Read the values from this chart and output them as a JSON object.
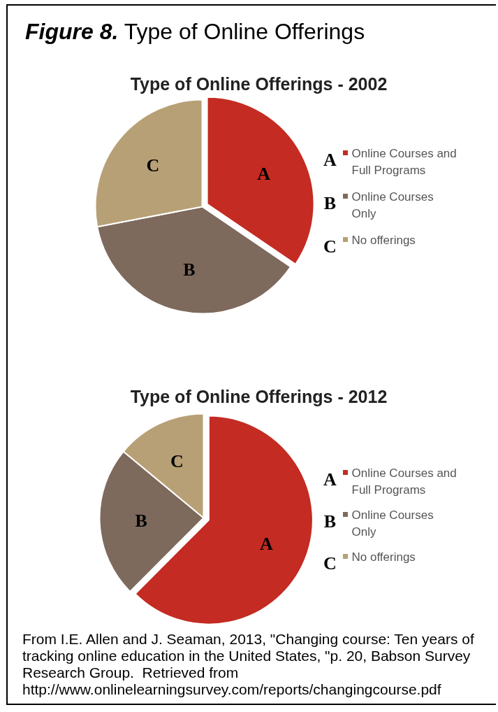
{
  "chart_data": [
    {
      "type": "pie",
      "title": "Type of Online Offerings - 2002",
      "categories": [
        "Online Courses and Full Programs",
        "Online Courses Only",
        "No offerings"
      ],
      "values": [
        34.5,
        37.5,
        28.0
      ],
      "colors": [
        "#c42b22",
        "#7d6a5d",
        "#b7a075"
      ],
      "value_labels": [
        "A",
        "B",
        "C"
      ],
      "legend": "right",
      "annotations": [
        "Figure 8.",
        "Type of Online Offerings"
      ]
    },
    {
      "type": "pie",
      "title": "Type of Online Offerings - 2012",
      "categories": [
        "Online Courses and Full Programs",
        "Online Courses Only",
        "No offerings"
      ],
      "values": [
        62.5,
        23.5,
        14.0
      ],
      "colors": [
        "#c42b22",
        "#7d6a5d",
        "#b7a075"
      ],
      "value_labels": [
        "A",
        "B",
        "C"
      ],
      "legend": "right",
      "annotations": [
        "From I.E. Allen and J. Seaman, 2013, \"Changing course: Ten years of tracking online education in the United States, \"p. 20, Babson Survey Research Group.  Retrieved from http://www.onlinelearningsurvey.com/reports/changingcourse.pdf"
      ]
    }
  ]
}
